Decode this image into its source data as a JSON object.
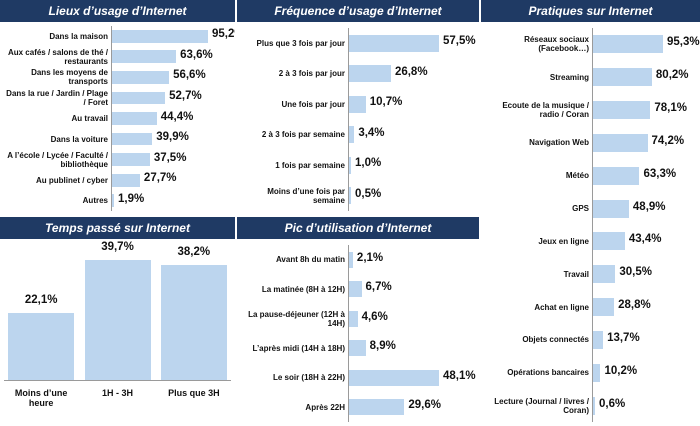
{
  "colors": {
    "header": "#1f3a64",
    "bar": "#bcd5ee",
    "axis": "#9a9a9a"
  },
  "chart_data": [
    {
      "id": "lieux",
      "type": "bar",
      "orientation": "horizontal",
      "title": "Lieux d’usage d’Internet",
      "categories": [
        "Dans la maison",
        "Aux cafés / salons de thé / restaurants",
        "Dans les moyens de transports",
        "Dans la rue / Jardin / Plage / Foret",
        "Au travail",
        "Dans la voiture",
        "A l’école / Lycée / Faculté / bibliothèque",
        "Au publinet / cyber",
        "Autres"
      ],
      "values": [
        95.2,
        63.6,
        56.6,
        52.7,
        44.4,
        39.9,
        37.5,
        27.7,
        1.9
      ],
      "labels": [
        "95,2%",
        "63,6%",
        "56,6%",
        "52,7%",
        "44,4%",
        "39,9%",
        "37,5%",
        "27,7%",
        "1,9%"
      ]
    },
    {
      "id": "frequence",
      "type": "bar",
      "orientation": "horizontal",
      "title": "Fréquence d’usage d’Internet",
      "categories": [
        "Plus que 3 fois par jour",
        "2 à 3 fois par jour",
        "Une fois par jour",
        "2 à 3 fois par semaine",
        "1 fois par semaine",
        "Moins d’une fois par semaine"
      ],
      "values": [
        57.5,
        26.8,
        10.7,
        3.4,
        1.0,
        0.5
      ],
      "labels": [
        "57,5%",
        "26,8%",
        "10,7%",
        "3,4%",
        "1,0%",
        "0,5%"
      ]
    },
    {
      "id": "pratiques",
      "type": "bar",
      "orientation": "horizontal",
      "title": "Pratiques sur Internet",
      "categories": [
        "Réseaux sociaux (Facebook…)",
        "Streaming",
        "Ecoute de la musique / radio / Coran",
        "Navigation Web",
        "Météo",
        "GPS",
        "Jeux en ligne",
        "Travail",
        "Achat en ligne",
        "Objets connectés",
        "Opérations bancaires",
        "Lecture (Journal / livres / Coran)"
      ],
      "values": [
        95.3,
        80.2,
        78.1,
        74.2,
        63.3,
        48.9,
        43.4,
        30.5,
        28.8,
        13.7,
        10.2,
        0.6
      ],
      "labels": [
        "95,3%",
        "80,2%",
        "78,1%",
        "74,2%",
        "63,3%",
        "48,9%",
        "43,4%",
        "30,5%",
        "28,8%",
        "13,7%",
        "10,2%",
        "0,6%"
      ]
    },
    {
      "id": "temps",
      "type": "bar",
      "orientation": "vertical",
      "title": "Temps passé sur Internet",
      "categories": [
        "Moins d’une heure",
        "1H - 3H",
        "Plus que 3H"
      ],
      "values": [
        22.1,
        39.7,
        38.2
      ],
      "labels": [
        "22,1%",
        "39,7%",
        "38,2%"
      ]
    },
    {
      "id": "pic",
      "type": "bar",
      "orientation": "horizontal",
      "title": "Pic d’utilisation d’Internet",
      "categories": [
        "Avant 8h du matin",
        "La matinée (8H à 12H)",
        "La pause-déjeuner (12H à 14H)",
        "L’après midi (14H à 18H)",
        "Le soir (18H à 22H)",
        "Après 22H"
      ],
      "values": [
        2.1,
        6.7,
        4.6,
        8.9,
        48.1,
        29.6
      ],
      "labels": [
        "2,1%",
        "6,7%",
        "4,6%",
        "8,9%",
        "48,1%",
        "29,6%"
      ]
    }
  ]
}
